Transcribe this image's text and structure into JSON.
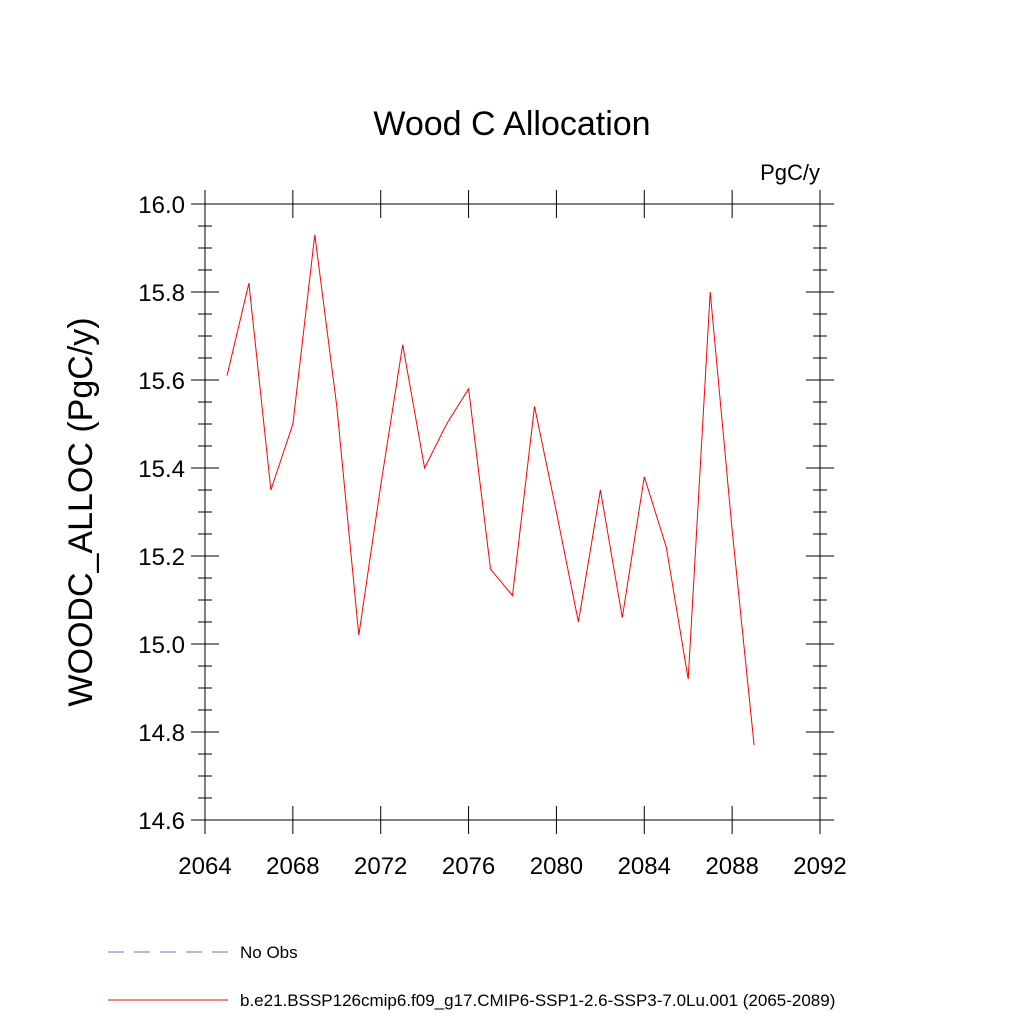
{
  "chart_data": {
    "type": "line",
    "title": "Wood C Allocation",
    "units_label": "PgC/y",
    "ylabel": "WOODC_ALLOC  (PgC/y)",
    "xlabel": "",
    "xlim": [
      2064,
      2092
    ],
    "ylim": [
      14.6,
      16.0
    ],
    "x_major_ticks": [
      2064,
      2068,
      2072,
      2076,
      2080,
      2084,
      2088,
      2092
    ],
    "x_tick_labels": [
      "2064",
      "2068",
      "2072",
      "2076",
      "2080",
      "2084",
      "2088",
      "2092"
    ],
    "y_major_ticks": [
      14.6,
      14.8,
      15.0,
      15.2,
      15.4,
      15.6,
      15.8,
      16.0
    ],
    "y_tick_labels": [
      "14.6",
      "14.8",
      "15.0",
      "15.2",
      "15.4",
      "15.6",
      "15.8",
      "16.0"
    ],
    "grid": false,
    "legend_position": "bottom-left",
    "series": [
      {
        "name": "b.e21.BSSP126cmip6.f09_g17.CMIP6-SSP1-2.6-SSP3-7.0Lu.001 (2065-2089)",
        "color": "#ff0000",
        "style": "solid",
        "x": [
          2065,
          2066,
          2067,
          2068,
          2069,
          2070,
          2071,
          2072,
          2073,
          2074,
          2075,
          2076,
          2077,
          2078,
          2079,
          2080,
          2081,
          2082,
          2083,
          2084,
          2085,
          2086,
          2087,
          2088,
          2089
        ],
        "y": [
          15.61,
          15.82,
          15.35,
          15.5,
          15.93,
          15.54,
          15.02,
          15.36,
          15.68,
          15.4,
          15.5,
          15.58,
          15.17,
          15.11,
          15.54,
          15.3,
          15.05,
          15.35,
          15.06,
          15.38,
          15.22,
          14.92,
          15.8,
          15.26,
          14.77
        ]
      }
    ],
    "legend": [
      {
        "label": "No Obs",
        "color": "#7b68c8",
        "style": "dashed"
      },
      {
        "label": "b.e21.BSSP126cmip6.f09_g17.CMIP6-SSP1-2.6-SSP3-7.0Lu.001 (2065-2089)",
        "color": "#ff0000",
        "style": "solid"
      }
    ]
  }
}
